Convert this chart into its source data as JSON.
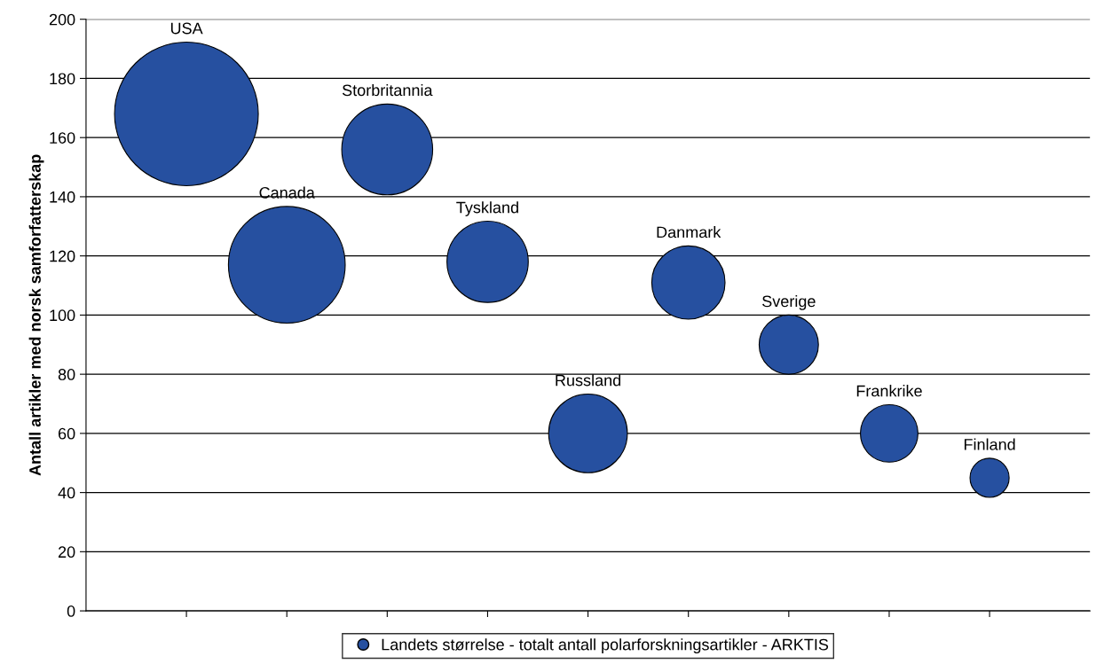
{
  "chart_data": {
    "type": "bubble",
    "ylabel": "Antall artikler med norsk samforfatterskap",
    "categories": [
      "USA",
      "Canada",
      "Storbritannia",
      "Tyskland",
      "Russland",
      "Danmark",
      "Sverige",
      "Frankrike",
      "Finland"
    ],
    "series": [
      {
        "name": "Landets størrelse - totalt antall polarforskningsartikler - ARKTIS",
        "color": "#2650a0",
        "values": [
          168,
          117,
          156,
          118,
          60,
          111,
          90,
          60,
          45
        ],
        "sizes": [
          1,
          0.66,
          0.4,
          0.32,
          0.3,
          0.26,
          0.17,
          0.16,
          0.074
        ]
      }
    ],
    "ylim": [
      0,
      200
    ],
    "yticks": [
      0,
      20,
      40,
      60,
      80,
      100,
      120,
      140,
      160,
      180,
      200
    ],
    "grid": "y",
    "legend": "bottom",
    "tick_labels": "y"
  }
}
